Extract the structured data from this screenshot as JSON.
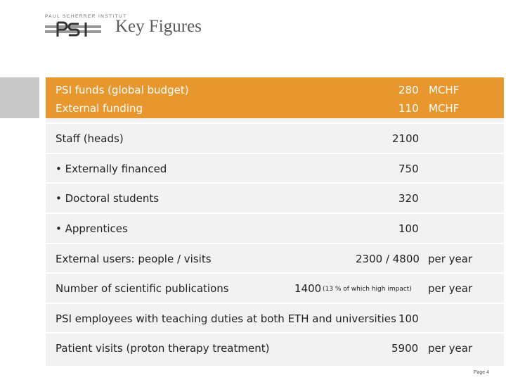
{
  "header": {
    "logo_text": "PAUL SCHERRER INSTITUT",
    "title": "Key Figures"
  },
  "funds": {
    "row1": {
      "label": "PSI funds (global budget)",
      "value": "280",
      "unit": "MCHF"
    },
    "row2": {
      "label": "External funding",
      "value": "110",
      "unit": "MCHF"
    }
  },
  "rows": [
    {
      "label": "Staff (heads)",
      "value": "2100",
      "unit": ""
    },
    {
      "label": "• Externally financed",
      "value": "750",
      "unit": ""
    },
    {
      "label": "• Doctoral students",
      "value": "320",
      "unit": ""
    },
    {
      "label": "• Apprentices",
      "value": "100",
      "unit": ""
    },
    {
      "label": "External users: people / visits",
      "value": "2300 / 4800",
      "unit": "per year"
    },
    {
      "label": "Number of scientific publications",
      "value": "1400",
      "note": "(13 % of which high impact)",
      "unit": "per year"
    },
    {
      "label": "PSI employees with teaching duties at both ETH and universities",
      "value": "100",
      "unit": ""
    },
    {
      "label": "Patient visits (proton therapy treatment)",
      "value": "5900",
      "unit": "per year"
    }
  ],
  "footer": {
    "page": "Page 4"
  }
}
